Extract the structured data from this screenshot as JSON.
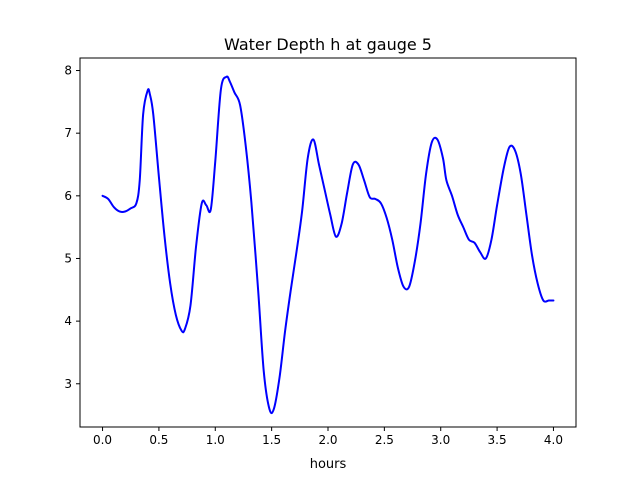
{
  "chart_data": {
    "type": "line",
    "title": "Water Depth h at gauge 5",
    "xlabel": "hours",
    "ylabel": "",
    "xlim": [
      -0.2,
      4.2
    ],
    "ylim": [
      2.31,
      8.2
    ],
    "xticks": [
      0.0,
      0.5,
      1.0,
      1.5,
      2.0,
      2.5,
      3.0,
      3.5,
      4.0
    ],
    "xtick_labels": [
      "0.0",
      "0.5",
      "1.0",
      "1.5",
      "2.0",
      "2.5",
      "3.0",
      "3.5",
      "4.0"
    ],
    "yticks": [
      3,
      4,
      5,
      6,
      7,
      8
    ],
    "ytick_labels": [
      "3",
      "4",
      "5",
      "6",
      "7",
      "8"
    ],
    "grid": false,
    "series": [
      {
        "color": "#0000ff",
        "x": [
          0.0,
          0.05,
          0.1,
          0.15,
          0.2,
          0.25,
          0.3,
          0.33,
          0.36,
          0.4,
          0.42,
          0.45,
          0.5,
          0.55,
          0.6,
          0.65,
          0.7,
          0.73,
          0.78,
          0.83,
          0.88,
          0.92,
          0.96,
          1.0,
          1.05,
          1.1,
          1.13,
          1.17,
          1.22,
          1.27,
          1.32,
          1.38,
          1.43,
          1.48,
          1.52,
          1.57,
          1.62,
          1.67,
          1.72,
          1.77,
          1.82,
          1.87,
          1.92,
          1.97,
          2.02,
          2.07,
          2.12,
          2.17,
          2.22,
          2.27,
          2.32,
          2.37,
          2.42,
          2.47,
          2.52,
          2.57,
          2.62,
          2.67,
          2.72,
          2.77,
          2.82,
          2.87,
          2.92,
          2.97,
          3.02,
          3.05,
          3.1,
          3.15,
          3.2,
          3.25,
          3.3,
          3.35,
          3.4,
          3.45,
          3.5,
          3.56,
          3.61,
          3.66,
          3.71,
          3.76,
          3.81,
          3.86,
          3.91,
          3.96,
          4.0
        ],
        "y": [
          6.0,
          5.95,
          5.82,
          5.75,
          5.75,
          5.8,
          5.88,
          6.25,
          7.3,
          7.68,
          7.62,
          7.3,
          6.3,
          5.35,
          4.6,
          4.1,
          3.85,
          3.87,
          4.25,
          5.2,
          5.88,
          5.85,
          5.78,
          6.55,
          7.7,
          7.9,
          7.82,
          7.65,
          7.45,
          6.8,
          5.9,
          4.5,
          3.2,
          2.6,
          2.6,
          3.1,
          3.85,
          4.5,
          5.1,
          5.75,
          6.6,
          6.9,
          6.5,
          6.1,
          5.7,
          5.35,
          5.55,
          6.05,
          6.5,
          6.5,
          6.25,
          5.98,
          5.95,
          5.88,
          5.65,
          5.3,
          4.85,
          4.55,
          4.55,
          4.95,
          5.55,
          6.35,
          6.85,
          6.9,
          6.6,
          6.25,
          6.0,
          5.7,
          5.5,
          5.3,
          5.25,
          5.1,
          5.0,
          5.3,
          5.85,
          6.45,
          6.78,
          6.72,
          6.35,
          5.7,
          5.05,
          4.6,
          4.33,
          4.33,
          4.33
        ]
      }
    ]
  }
}
